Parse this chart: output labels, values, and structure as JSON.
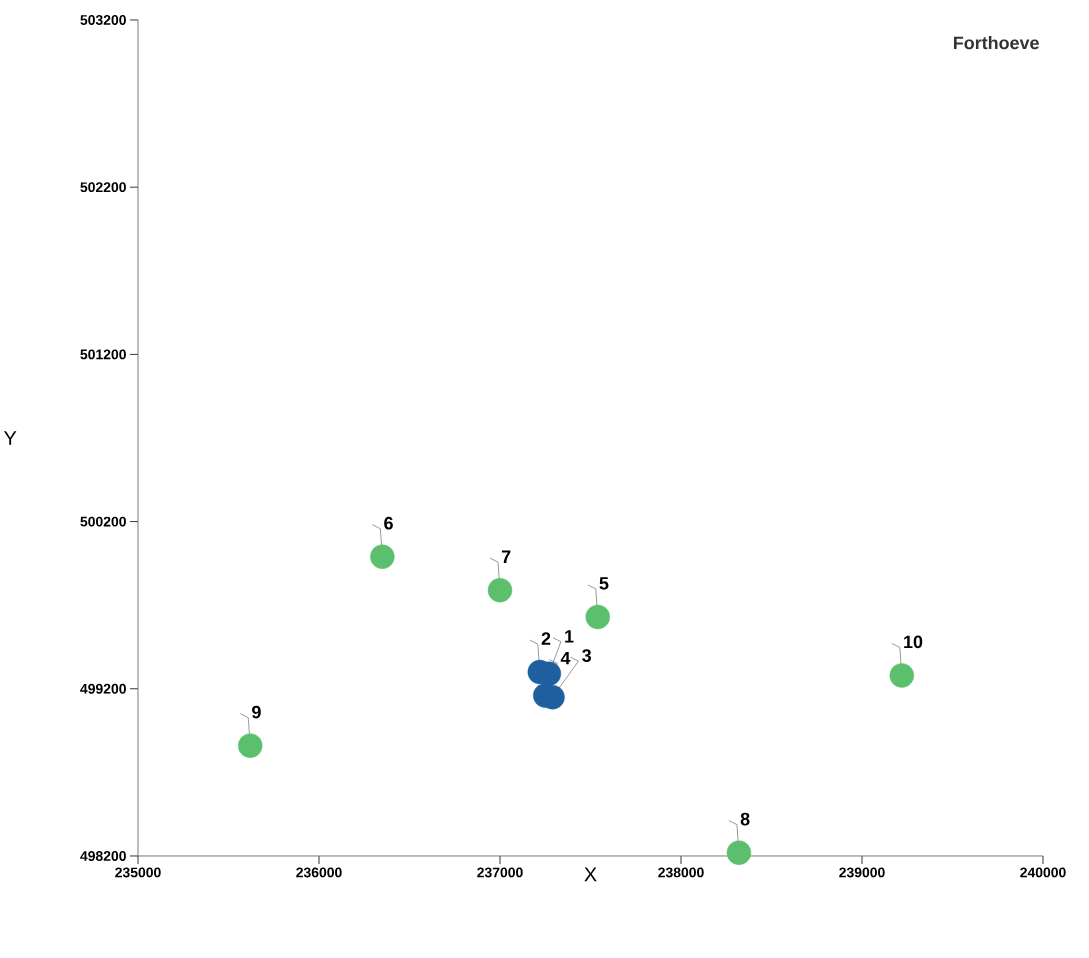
{
  "chart_data": {
    "type": "scatter",
    "title": "Forthoeve",
    "xlabel": "X",
    "ylabel": "Y",
    "xlim": [
      235000,
      240000
    ],
    "xticks": [
      235000,
      236000,
      237000,
      238000,
      239000,
      240000
    ],
    "ylim": [
      498200,
      503200
    ],
    "yticks": [
      498200,
      499200,
      500200,
      501200,
      502200,
      503200
    ],
    "marker": "circle",
    "series": [
      {
        "color": "#5cbf6e",
        "x": [
          237540,
          236350,
          237000,
          238320,
          235620,
          239220
        ],
        "values": [
          499630,
          499990,
          499790,
          498220,
          498860,
          499280
        ]
      },
      {
        "color": "#1f5fa0",
        "x": [
          237220,
          237270,
          237250,
          237290
        ],
        "values": [
          499300,
          499290,
          499160,
          499150
        ]
      }
    ],
    "annotations": [
      {
        "text": "5",
        "x": 237540,
        "y": 499630
      },
      {
        "text": "6",
        "x": 236350,
        "y": 499990
      },
      {
        "text": "7",
        "x": 237000,
        "y": 499790
      },
      {
        "text": "8",
        "x": 238320,
        "y": 498220
      },
      {
        "text": "9",
        "x": 235620,
        "y": 498860
      },
      {
        "text": "10",
        "x": 239220,
        "y": 499280
      },
      {
        "text": "2",
        "x": 237220,
        "y": 499300
      },
      {
        "text": "1",
        "x": 237270,
        "y": 499290
      },
      {
        "text": "4",
        "x": 237250,
        "y": 499160
      },
      {
        "text": "3",
        "x": 237290,
        "y": 499150
      }
    ]
  }
}
